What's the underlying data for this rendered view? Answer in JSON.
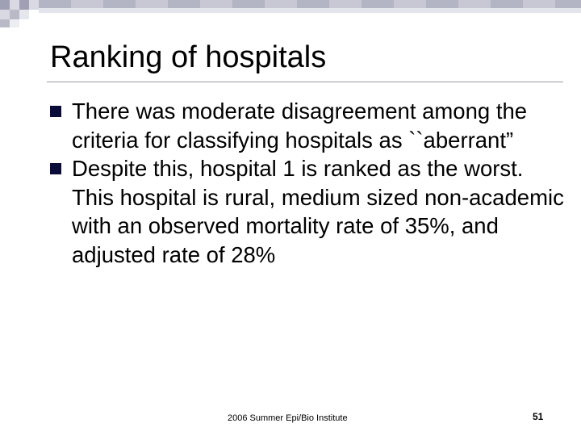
{
  "slide": {
    "title": "Ranking of hospitals",
    "bullets": [
      {
        "text": "There was moderate disagreement among the criteria for classifying hospitals as ``aberrant”"
      },
      {
        "text": "Despite this, hospital 1 is ranked as the worst. This hospital is rural, medium sized non-academic with an observed mortality rate of 35%, and adjusted rate of 28%"
      }
    ],
    "footer": "2006 Summer Epi/Bio Institute",
    "page_number": "51"
  },
  "colors": {
    "bullet": "#0b0b3a",
    "check_dark": "#9fa0b3",
    "check_light": "#d8d9e2",
    "divider": "#9a9aa8"
  },
  "icons": {
    "bullet_marker": "square-bullet-icon"
  }
}
